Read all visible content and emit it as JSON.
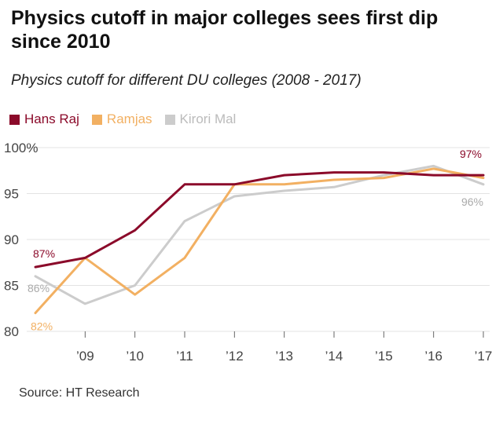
{
  "title": "Physics cutoff in major colleges sees first dip since 2010",
  "subtitle": "Physics cutoff for different DU colleges (2008 - 2017)",
  "source": "Source: HT Research",
  "colors": {
    "hans_raj": "#8b0a2a",
    "ramjas": "#f2b062",
    "kirori_mal": "#cccccc",
    "grid": "#e3e3e3",
    "axis": "#666666"
  },
  "chart_data": {
    "type": "line",
    "title": "Physics cutoff in major colleges sees first dip since 2010",
    "subtitle": "Physics cutoff for different DU colleges (2008 - 2017)",
    "x": [
      2008,
      2009,
      2010,
      2011,
      2012,
      2013,
      2014,
      2015,
      2016,
      2017
    ],
    "x_tick_labels": [
      "’09",
      "’10",
      "’11",
      "’12",
      "’13",
      "’14",
      "’15",
      "’16",
      "’17"
    ],
    "x_tick_values": [
      2009,
      2010,
      2011,
      2012,
      2013,
      2014,
      2015,
      2016,
      2017
    ],
    "y_tick_labels": [
      "80",
      "85",
      "90",
      "95",
      "100%"
    ],
    "y_tick_values": [
      80,
      85,
      90,
      95,
      100
    ],
    "ylim": [
      80,
      100
    ],
    "xlim": [
      2008,
      2017
    ],
    "grid": true,
    "legend_position": "top-left",
    "series": [
      {
        "name": "Hans Raj",
        "color": "#8b0a2a",
        "values": [
          87,
          88,
          91,
          96,
          96,
          97,
          97.3,
          97.3,
          97,
          97
        ]
      },
      {
        "name": "Ramjas",
        "color": "#f2b062",
        "values": [
          82,
          88,
          84,
          88,
          96,
          96,
          96.5,
          96.7,
          97.7,
          96.7
        ]
      },
      {
        "name": "Kirori Mal",
        "color": "#cccccc",
        "values": [
          86,
          83,
          85,
          92,
          94.7,
          95.3,
          95.7,
          97,
          98,
          96
        ]
      }
    ],
    "annotations": [
      {
        "series": 0,
        "index": 0,
        "text": "87%",
        "color": "#8b0a2a"
      },
      {
        "series": 1,
        "index": 0,
        "text": "82%",
        "color": "#f2b062"
      },
      {
        "series": 2,
        "index": 0,
        "text": "86%",
        "color": "#aaaaaa"
      },
      {
        "series": 0,
        "index": 9,
        "text": "97%",
        "color": "#8b0a2a"
      },
      {
        "series": 2,
        "index": 9,
        "text": "96%",
        "color": "#aaaaaa"
      }
    ]
  }
}
